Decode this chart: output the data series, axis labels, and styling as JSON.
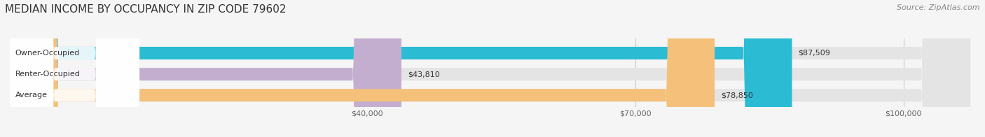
{
  "title": "MEDIAN INCOME BY OCCUPANCY IN ZIP CODE 79602",
  "source": "Source: ZipAtlas.com",
  "categories": [
    "Owner-Occupied",
    "Renter-Occupied",
    "Average"
  ],
  "values": [
    87509,
    43810,
    78850
  ],
  "bar_colors": [
    "#2bbcd4",
    "#c4aed0",
    "#f5c07a"
  ],
  "bar_labels": [
    "$87,509",
    "$43,810",
    "$78,850"
  ],
  "x_ticks": [
    40000,
    70000,
    100000
  ],
  "x_tick_labels": [
    "$40,000",
    "$70,000",
    "$100,000"
  ],
  "xlim": [
    0,
    108000
  ],
  "background_color": "#f5f5f5",
  "bar_background_color": "#e4e4e4",
  "title_fontsize": 11,
  "source_fontsize": 8,
  "label_fontsize": 8,
  "value_fontsize": 8
}
